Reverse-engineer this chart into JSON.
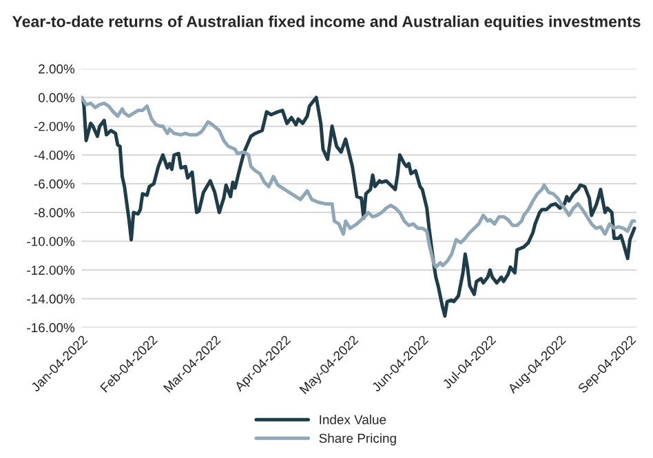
{
  "chart_data": {
    "type": "line",
    "title": "Year-to-date returns of Australian fixed income and Australian equities investments",
    "series": [
      {
        "name": "Index Value",
        "color": "#1e3d48",
        "x": [
          "2022-01-04",
          "2022-01-05",
          "2022-01-06",
          "2022-01-08",
          "2022-01-09",
          "2022-01-11",
          "2022-01-12",
          "2022-01-14",
          "2022-01-15",
          "2022-01-17",
          "2022-01-19",
          "2022-01-20",
          "2022-01-21",
          "2022-01-22",
          "2022-01-23",
          "2022-01-25",
          "2022-01-26",
          "2022-01-27",
          "2022-01-29",
          "2022-01-30",
          "2022-01-31",
          "2022-02-02",
          "2022-02-03",
          "2022-02-05",
          "2022-02-07",
          "2022-02-09",
          "2022-02-11",
          "2022-02-12",
          "2022-02-13",
          "2022-02-14",
          "2022-02-16",
          "2022-02-17",
          "2022-02-19",
          "2022-02-20",
          "2022-02-22",
          "2022-02-23",
          "2022-02-24",
          "2022-02-25",
          "2022-02-27",
          "2022-03-02",
          "2022-03-04",
          "2022-03-06",
          "2022-03-08",
          "2022-03-09",
          "2022-03-11",
          "2022-03-12",
          "2022-03-13",
          "2022-03-15",
          "2022-03-17",
          "2022-03-20",
          "2022-03-22",
          "2022-03-25",
          "2022-03-27",
          "2022-03-29",
          "2022-04-01",
          "2022-04-03",
          "2022-04-05",
          "2022-04-07",
          "2022-04-09",
          "2022-04-10",
          "2022-04-12",
          "2022-04-14",
          "2022-04-15",
          "2022-04-17",
          "2022-04-18",
          "2022-04-20",
          "2022-04-21",
          "2022-04-23",
          "2022-04-24",
          "2022-04-25",
          "2022-04-27",
          "2022-04-29",
          "2022-05-01",
          "2022-05-04",
          "2022-05-06",
          "2022-05-08",
          "2022-05-09",
          "2022-05-10",
          "2022-05-12",
          "2022-05-13",
          "2022-05-14",
          "2022-05-16",
          "2022-05-17",
          "2022-05-19",
          "2022-05-21",
          "2022-05-23",
          "2022-05-24",
          "2022-05-25",
          "2022-05-27",
          "2022-05-28",
          "2022-05-29",
          "2022-05-30",
          "2022-06-01",
          "2022-06-03",
          "2022-06-04",
          "2022-06-06",
          "2022-06-07",
          "2022-06-09",
          "2022-06-10",
          "2022-06-11",
          "2022-06-13",
          "2022-06-14",
          "2022-06-15",
          "2022-06-17",
          "2022-06-18",
          "2022-06-20",
          "2022-06-22",
          "2022-06-23",
          "2022-06-24",
          "2022-06-25",
          "2022-06-27",
          "2022-06-28",
          "2022-06-30",
          "2022-07-01",
          "2022-07-03",
          "2022-07-04",
          "2022-07-05",
          "2022-07-07",
          "2022-07-09",
          "2022-07-10",
          "2022-07-12",
          "2022-07-13",
          "2022-07-15",
          "2022-07-16",
          "2022-07-19",
          "2022-07-21",
          "2022-07-23",
          "2022-07-24",
          "2022-07-26",
          "2022-07-27",
          "2022-07-29",
          "2022-07-31",
          "2022-08-02",
          "2022-08-04",
          "2022-08-06",
          "2022-08-07",
          "2022-08-08",
          "2022-08-10",
          "2022-08-12",
          "2022-08-13",
          "2022-08-15",
          "2022-08-17",
          "2022-08-18",
          "2022-08-20",
          "2022-08-21",
          "2022-08-22",
          "2022-08-24",
          "2022-08-25",
          "2022-08-27",
          "2022-08-28",
          "2022-08-30",
          "2022-08-31",
          "2022-09-01",
          "2022-09-03",
          "2022-09-04",
          "2022-09-06"
        ],
        "values": [
          0,
          -0.5,
          -3.0,
          -1.8,
          -2.0,
          -2.7,
          -2.0,
          -1.6,
          -2.6,
          -2.3,
          -2.5,
          -3.3,
          -3.4,
          -5.5,
          -6.2,
          -8.5,
          -9.9,
          -8.0,
          -8.1,
          -7.8,
          -6.7,
          -6.8,
          -6.2,
          -6.0,
          -4.8,
          -4.0,
          -4.9,
          -4.6,
          -5.0,
          -4.0,
          -3.9,
          -4.9,
          -4.8,
          -5.6,
          -5.2,
          -6.7,
          -8.0,
          -7.9,
          -6.6,
          -5.8,
          -6.6,
          -8.0,
          -7.0,
          -6.1,
          -6.9,
          -5.9,
          -6.3,
          -5.0,
          -3.8,
          -2.7,
          -2.5,
          -2.3,
          -1.0,
          -1.2,
          -1.0,
          -0.9,
          -1.8,
          -1.4,
          -1.9,
          -1.5,
          -1.8,
          -1.3,
          -0.6,
          -0.2,
          0,
          -1.8,
          -3.6,
          -4.3,
          -3.2,
          -2.0,
          -3.4,
          -3.8,
          -2.9,
          -4.8,
          -6.9,
          -7.0,
          -8.4,
          -6.7,
          -6.4,
          -5.4,
          -6.2,
          -5.8,
          -5.9,
          -5.8,
          -6.1,
          -6.4,
          -5.4,
          -4.0,
          -4.6,
          -4.8,
          -4.6,
          -5.3,
          -5.1,
          -6.2,
          -6.4,
          -7.7,
          -9.1,
          -11.5,
          -12.5,
          -13.1,
          -14.6,
          -15.2,
          -14.2,
          -14.1,
          -14.2,
          -13.8,
          -12.2,
          -10.9,
          -11.8,
          -13.1,
          -13.7,
          -12.8,
          -12.6,
          -12.9,
          -12.5,
          -12.0,
          -12.5,
          -12.9,
          -12.5,
          -12.8,
          -12.3,
          -11.8,
          -12.2,
          -10.6,
          -10.4,
          -10.1,
          -9.4,
          -8.8,
          -8.0,
          -7.8,
          -7.8,
          -7.5,
          -7.4,
          -7.7,
          -7.4,
          -6.9,
          -7.2,
          -6.7,
          -6.4,
          -6.1,
          -6.2,
          -7.0,
          -8.2,
          -7.5,
          -7.0,
          -6.4,
          -8.0,
          -7.7,
          -8.0,
          -9.8,
          -9.8,
          -9.6,
          -10.1,
          -11.2,
          -9.9,
          -9.1
        ]
      },
      {
        "name": "Share Pricing",
        "color": "#8fa7b6",
        "x": [
          "2022-01-04",
          "2022-01-06",
          "2022-01-08",
          "2022-01-10",
          "2022-01-12",
          "2022-01-14",
          "2022-01-16",
          "2022-01-18",
          "2022-01-20",
          "2022-01-22",
          "2022-01-23",
          "2022-01-25",
          "2022-01-27",
          "2022-01-29",
          "2022-01-31",
          "2022-02-02",
          "2022-02-04",
          "2022-02-06",
          "2022-02-08",
          "2022-02-09",
          "2022-02-11",
          "2022-02-12",
          "2022-02-14",
          "2022-02-17",
          "2022-02-19",
          "2022-02-21",
          "2022-02-24",
          "2022-02-26",
          "2022-02-27",
          "2022-03-01",
          "2022-03-03",
          "2022-03-06",
          "2022-03-08",
          "2022-03-10",
          "2022-03-13",
          "2022-03-14",
          "2022-03-17",
          "2022-03-19",
          "2022-03-20",
          "2022-03-22",
          "2022-03-24",
          "2022-03-26",
          "2022-03-28",
          "2022-03-30",
          "2022-04-01",
          "2022-04-03",
          "2022-04-05",
          "2022-04-08",
          "2022-04-11",
          "2022-04-14",
          "2022-04-16",
          "2022-04-19",
          "2022-04-22",
          "2022-04-25",
          "2022-04-26",
          "2022-04-28",
          "2022-04-30",
          "2022-05-01",
          "2022-05-03",
          "2022-05-06",
          "2022-05-08",
          "2022-05-10",
          "2022-05-11",
          "2022-05-13",
          "2022-05-15",
          "2022-05-17",
          "2022-05-19",
          "2022-05-21",
          "2022-05-23",
          "2022-05-25",
          "2022-05-27",
          "2022-05-29",
          "2022-05-31",
          "2022-06-02",
          "2022-06-04",
          "2022-06-06",
          "2022-06-07",
          "2022-06-09",
          "2022-06-10",
          "2022-06-12",
          "2022-06-13",
          "2022-06-15",
          "2022-06-17",
          "2022-06-19",
          "2022-06-21",
          "2022-06-23",
          "2022-06-25",
          "2022-06-27",
          "2022-06-29",
          "2022-07-01",
          "2022-07-03",
          "2022-07-04",
          "2022-07-06",
          "2022-07-08",
          "2022-07-10",
          "2022-07-12",
          "2022-07-14",
          "2022-07-16",
          "2022-07-18",
          "2022-07-19",
          "2022-07-21",
          "2022-07-23",
          "2022-07-25",
          "2022-07-27",
          "2022-07-28",
          "2022-07-30",
          "2022-08-01",
          "2022-08-03",
          "2022-08-05",
          "2022-08-06",
          "2022-08-08",
          "2022-08-10",
          "2022-08-12",
          "2022-08-14",
          "2022-08-16",
          "2022-08-18",
          "2022-08-20",
          "2022-08-22",
          "2022-08-24",
          "2022-08-26",
          "2022-08-28",
          "2022-08-30",
          "2022-09-01",
          "2022-09-03",
          "2022-09-05",
          "2022-09-06"
        ],
        "values": [
          0,
          -0.5,
          -0.4,
          -0.7,
          -0.5,
          -0.4,
          -0.6,
          -1.0,
          -1.3,
          -0.8,
          -1.1,
          -1.3,
          -1.1,
          -0.9,
          -0.9,
          -0.6,
          -1.5,
          -1.9,
          -2.0,
          -2.0,
          -2.5,
          -2.2,
          -2.5,
          -2.6,
          -2.5,
          -2.6,
          -2.6,
          -2.4,
          -2.2,
          -1.7,
          -1.9,
          -2.3,
          -3.0,
          -3.4,
          -3.6,
          -3.9,
          -3.8,
          -4.0,
          -4.8,
          -5.1,
          -5.3,
          -5.9,
          -6.2,
          -5.5,
          -6.1,
          -6.3,
          -6.5,
          -6.8,
          -7.1,
          -6.5,
          -7.1,
          -7.3,
          -7.4,
          -7.4,
          -8.6,
          -8.8,
          -9.5,
          -8.6,
          -9.1,
          -8.8,
          -8.5,
          -8.2,
          -8.0,
          -8.3,
          -8.2,
          -8.0,
          -7.7,
          -7.5,
          -7.7,
          -8.0,
          -8.6,
          -8.9,
          -8.8,
          -9.1,
          -9.1,
          -9.3,
          -10.2,
          -11.5,
          -11.8,
          -11.5,
          -11.7,
          -11.4,
          -10.9,
          -9.9,
          -10.1,
          -9.8,
          -9.4,
          -9.1,
          -8.8,
          -8.2,
          -8.6,
          -8.5,
          -8.8,
          -8.3,
          -8.3,
          -8.5,
          -8.9,
          -8.9,
          -8.6,
          -8.2,
          -7.8,
          -7.2,
          -6.7,
          -6.4,
          -6.1,
          -6.6,
          -6.7,
          -7.0,
          -7.5,
          -7.7,
          -8.2,
          -7.7,
          -7.4,
          -7.8,
          -8.3,
          -8.8,
          -9.1,
          -9.0,
          -9.5,
          -8.8,
          -9.1,
          -9.0,
          -9.1,
          -9.3,
          -8.6,
          -8.6
        ]
      }
    ],
    "xlim": [
      "2022-01-04",
      "2022-09-07"
    ],
    "xticks": [
      {
        "value": "2022-01-04",
        "label": "Jan-04-2022"
      },
      {
        "value": "2022-02-04",
        "label": "Feb-04-2022"
      },
      {
        "value": "2022-03-04",
        "label": "Mar-04-2022"
      },
      {
        "value": "2022-04-04",
        "label": "Apr-04-2022"
      },
      {
        "value": "2022-05-04",
        "label": "May-04-2022"
      },
      {
        "value": "2022-06-04",
        "label": "Jun-04-2022"
      },
      {
        "value": "2022-07-04",
        "label": "Jul-04-2022"
      },
      {
        "value": "2022-08-04",
        "label": "Aug-04-2022"
      },
      {
        "value": "2022-09-04",
        "label": "Sep-04-2022"
      }
    ],
    "ylim": [
      -16,
      2
    ],
    "yticks": [
      {
        "value": 2,
        "label": "2.00%"
      },
      {
        "value": 0,
        "label": "0.00%"
      },
      {
        "value": -2,
        "label": "-2.00%"
      },
      {
        "value": -4,
        "label": "-4.00%"
      },
      {
        "value": -6,
        "label": "-6.00%"
      },
      {
        "value": -8,
        "label": "-8.00%"
      },
      {
        "value": -10,
        "label": "-10.00%"
      },
      {
        "value": -12,
        "label": "-12.00%"
      },
      {
        "value": -14,
        "label": "-14.00%"
      },
      {
        "value": -16,
        "label": "-16.00%"
      }
    ],
    "grid": "y",
    "legend": "bottom",
    "marker": "none",
    "line_style": "solid"
  }
}
